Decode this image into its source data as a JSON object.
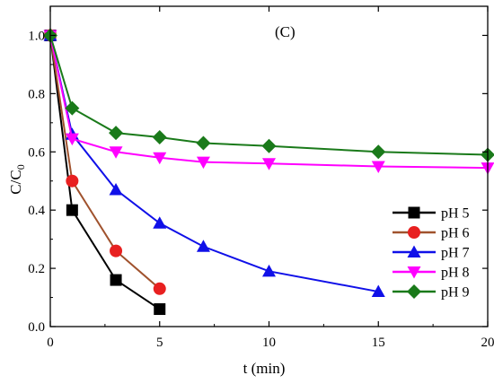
{
  "chart_data": {
    "type": "line",
    "panel_label": "(C)",
    "xlabel": "t (min)",
    "ylabel_main": "C/C",
    "ylabel_sub": "0",
    "xlim": [
      0,
      20
    ],
    "ylim": [
      0,
      1.1
    ],
    "xticks": [
      0,
      5,
      10,
      15,
      20
    ],
    "yticks": [
      0.0,
      0.2,
      0.4,
      0.6,
      0.8,
      1.0
    ],
    "ytick_labels": [
      "0.0",
      "0.2",
      "0.4",
      "0.6",
      "0.8",
      "1.0"
    ],
    "legend_position": "right",
    "series": [
      {
        "name": "pH 5",
        "color": "#000000",
        "marker": "square",
        "x": [
          0,
          1,
          3,
          5
        ],
        "y": [
          1.0,
          0.4,
          0.16,
          0.06
        ]
      },
      {
        "name": "pH 6",
        "color": "#a0522d",
        "marker_color": "#e82020",
        "marker": "circle",
        "x": [
          0,
          1,
          3,
          5
        ],
        "y": [
          1.0,
          0.5,
          0.26,
          0.13
        ]
      },
      {
        "name": "pH 7",
        "color": "#1010e8",
        "marker": "triangle-up",
        "x": [
          0,
          1,
          3,
          5,
          7,
          10,
          15
        ],
        "y": [
          1.0,
          0.66,
          0.47,
          0.355,
          0.275,
          0.19,
          0.12
        ]
      },
      {
        "name": "pH 8",
        "color": "#ff00ff",
        "marker": "triangle-down",
        "x": [
          0,
          1,
          3,
          5,
          7,
          10,
          15,
          20
        ],
        "y": [
          1.0,
          0.645,
          0.6,
          0.58,
          0.565,
          0.56,
          0.55,
          0.545
        ]
      },
      {
        "name": "pH 9",
        "color": "#1a7a1a",
        "marker": "diamond",
        "x": [
          0,
          1,
          3,
          5,
          7,
          10,
          15,
          20
        ],
        "y": [
          1.0,
          0.75,
          0.665,
          0.65,
          0.63,
          0.62,
          0.6,
          0.59
        ]
      }
    ]
  }
}
